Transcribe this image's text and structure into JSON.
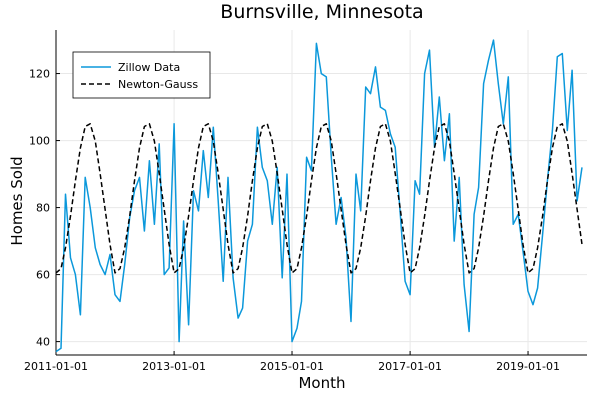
{
  "chart_data": {
    "type": "line",
    "title": "Burnsville, Minnesota",
    "xlabel": "Month",
    "ylabel": "Homes Sold",
    "xlim": [
      "2011-01-01",
      "2020-01-01"
    ],
    "ylim": [
      36,
      133
    ],
    "x_ticks": [
      "2011-01-01",
      "2013-01-01",
      "2015-01-01",
      "2017-01-01",
      "2019-01-01"
    ],
    "y_ticks": [
      40,
      60,
      80,
      100,
      120
    ],
    "grid": true,
    "legend_position": "top-left",
    "series": [
      {
        "name": "Zillow Data",
        "style": "solid",
        "color": "#0b98db",
        "x": [
          "2011-01-01",
          "2011-02-01",
          "2011-03-01",
          "2011-04-01",
          "2011-05-01",
          "2011-06-01",
          "2011-07-01",
          "2011-08-01",
          "2011-09-01",
          "2011-10-01",
          "2011-11-01",
          "2011-12-01",
          "2012-01-01",
          "2012-02-01",
          "2012-03-01",
          "2012-04-01",
          "2012-05-01",
          "2012-06-01",
          "2012-07-01",
          "2012-08-01",
          "2012-09-01",
          "2012-10-01",
          "2012-11-01",
          "2012-12-01",
          "2013-01-01",
          "2013-02-01",
          "2013-03-01",
          "2013-04-01",
          "2013-05-01",
          "2013-06-01",
          "2013-07-01",
          "2013-08-01",
          "2013-09-01",
          "2013-10-01",
          "2013-11-01",
          "2013-12-01",
          "2014-01-01",
          "2014-02-01",
          "2014-03-01",
          "2014-04-01",
          "2014-05-01",
          "2014-06-01",
          "2014-07-01",
          "2014-08-01",
          "2014-09-01",
          "2014-10-01",
          "2014-11-01",
          "2014-12-01",
          "2015-01-01",
          "2015-02-01",
          "2015-03-01",
          "2015-04-01",
          "2015-05-01",
          "2015-06-01",
          "2015-07-01",
          "2015-08-01",
          "2015-09-01",
          "2015-10-01",
          "2015-11-01",
          "2015-12-01",
          "2016-01-01",
          "2016-02-01",
          "2016-03-01",
          "2016-04-01",
          "2016-05-01",
          "2016-06-01",
          "2016-07-01",
          "2016-08-01",
          "2016-09-01",
          "2016-10-01",
          "2016-11-01",
          "2016-12-01",
          "2017-01-01",
          "2017-02-01",
          "2017-03-01",
          "2017-04-01",
          "2017-05-01",
          "2017-06-01",
          "2017-07-01",
          "2017-08-01",
          "2017-09-01",
          "2017-10-01",
          "2017-11-01",
          "2017-12-01",
          "2018-01-01",
          "2018-02-01",
          "2018-03-01",
          "2018-04-01",
          "2018-05-01",
          "2018-06-01",
          "2018-07-01",
          "2018-08-01",
          "2018-09-01",
          "2018-10-01",
          "2018-11-01",
          "2018-12-01",
          "2019-01-01",
          "2019-02-01",
          "2019-03-01",
          "2019-04-01",
          "2019-05-01",
          "2019-06-01",
          "2019-07-01",
          "2019-08-01",
          "2019-09-01",
          "2019-10-01",
          "2019-11-01",
          "2019-12-01"
        ],
        "y": [
          37,
          38,
          84,
          65,
          60,
          48,
          89,
          80,
          68,
          63,
          60,
          66,
          54,
          52,
          63,
          77,
          85,
          89,
          73,
          94,
          75,
          99,
          60,
          62,
          105,
          40,
          76,
          45,
          85,
          79,
          97,
          83,
          104,
          82,
          58,
          89,
          59,
          47,
          50,
          70,
          75,
          104,
          92,
          88,
          75,
          92,
          59,
          90,
          40,
          44,
          52,
          95,
          91,
          129,
          120,
          119,
          95,
          75,
          83,
          71,
          46,
          90,
          79,
          116,
          114,
          122,
          110,
          109,
          102,
          98,
          78,
          58,
          54,
          88,
          84,
          120,
          127,
          98,
          113,
          94,
          108,
          70,
          89,
          57,
          43,
          78,
          86,
          117,
          124,
          130,
          117,
          105,
          119,
          75,
          78,
          67,
          55,
          51,
          56,
          72,
          88,
          103,
          125,
          126,
          103,
          121,
          82,
          92
        ]
      },
      {
        "name": "Newton-Gauss",
        "style": "dashed",
        "color": "#000000",
        "x": [
          "2011-01-01",
          "2011-02-01",
          "2011-03-01",
          "2011-04-01",
          "2011-05-01",
          "2011-06-01",
          "2011-07-01",
          "2011-08-01",
          "2011-09-01",
          "2011-10-01",
          "2011-11-01",
          "2011-12-01",
          "2012-01-01",
          "2012-02-01",
          "2012-03-01",
          "2012-04-01",
          "2012-05-01",
          "2012-06-01",
          "2012-07-01",
          "2012-08-01",
          "2012-09-01",
          "2012-10-01",
          "2012-11-01",
          "2012-12-01",
          "2013-01-01",
          "2013-02-01",
          "2013-03-01",
          "2013-04-01",
          "2013-05-01",
          "2013-06-01",
          "2013-07-01",
          "2013-08-01",
          "2013-09-01",
          "2013-10-01",
          "2013-11-01",
          "2013-12-01",
          "2014-01-01",
          "2014-02-01",
          "2014-03-01",
          "2014-04-01",
          "2014-05-01",
          "2014-06-01",
          "2014-07-01",
          "2014-08-01",
          "2014-09-01",
          "2014-10-01",
          "2014-11-01",
          "2014-12-01",
          "2015-01-01",
          "2015-02-01",
          "2015-03-01",
          "2015-04-01",
          "2015-05-01",
          "2015-06-01",
          "2015-07-01",
          "2015-08-01",
          "2015-09-01",
          "2015-10-01",
          "2015-11-01",
          "2015-12-01",
          "2016-01-01",
          "2016-02-01",
          "2016-03-01",
          "2016-04-01",
          "2016-05-01",
          "2016-06-01",
          "2016-07-01",
          "2016-08-01",
          "2016-09-01",
          "2016-10-01",
          "2016-11-01",
          "2016-12-01",
          "2017-01-01",
          "2017-02-01",
          "2017-03-01",
          "2017-04-01",
          "2017-05-01",
          "2017-06-01",
          "2017-07-01",
          "2017-08-01",
          "2017-09-01",
          "2017-10-01",
          "2017-11-01",
          "2017-12-01",
          "2018-01-01",
          "2018-02-01",
          "2018-03-01",
          "2018-04-01",
          "2018-05-01",
          "2018-06-01",
          "2018-07-01",
          "2018-08-01",
          "2018-09-01",
          "2018-10-01",
          "2018-11-01",
          "2018-12-01",
          "2019-01-01",
          "2019-02-01",
          "2019-03-01",
          "2019-04-01",
          "2019-05-01",
          "2019-06-01",
          "2019-07-01",
          "2019-08-01",
          "2019-09-01",
          "2019-10-01",
          "2019-11-01",
          "2019-12-01"
        ],
        "y": [
          60.5,
          61.8,
          68.0,
          77.5,
          88.0,
          97.8,
          104.2,
          105.0,
          99.8,
          90.2,
          79.5,
          69.0,
          60.5,
          61.8,
          68.0,
          77.5,
          88.0,
          97.8,
          104.2,
          105.0,
          99.8,
          90.2,
          79.5,
          69.0,
          60.5,
          61.8,
          68.0,
          77.5,
          88.0,
          97.8,
          104.2,
          105.0,
          99.8,
          90.2,
          79.5,
          69.0,
          60.5,
          61.8,
          68.0,
          77.5,
          88.0,
          97.8,
          104.2,
          105.0,
          99.8,
          90.2,
          79.5,
          69.0,
          60.5,
          61.8,
          68.0,
          77.5,
          88.0,
          97.8,
          104.2,
          105.0,
          99.8,
          90.2,
          79.5,
          69.0,
          60.5,
          61.8,
          68.0,
          77.5,
          88.0,
          97.8,
          104.2,
          105.0,
          99.8,
          90.2,
          79.5,
          69.0,
          60.5,
          61.8,
          68.0,
          77.5,
          88.0,
          97.8,
          104.2,
          105.0,
          99.8,
          90.2,
          79.5,
          69.0,
          60.5,
          61.8,
          68.0,
          77.5,
          88.0,
          97.8,
          104.2,
          105.0,
          99.8,
          90.2,
          79.5,
          69.0,
          60.5,
          61.8,
          68.0,
          77.5,
          88.0,
          97.8,
          104.2,
          105.0,
          99.8,
          90.2,
          79.5,
          69.0
        ]
      }
    ]
  }
}
